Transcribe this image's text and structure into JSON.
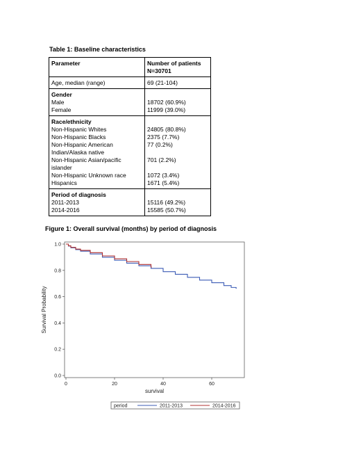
{
  "table": {
    "caption": "Table 1: Baseline characteristics",
    "header": {
      "parameter": "Parameter",
      "patients": [
        "Number of patients",
        "N=30701"
      ]
    },
    "age": {
      "label": "Age, median (range)",
      "value": "69 (21-104)"
    },
    "groups": [
      {
        "title": "Gender",
        "rows": [
          {
            "label": [
              "Male"
            ],
            "value": "18702 (60.9%)"
          },
          {
            "label": [
              "Female"
            ],
            "value": "11999 (39.0%)"
          }
        ]
      },
      {
        "title": "Race/ethnicity",
        "rows": [
          {
            "label": [
              "Non-Hispanic Whites"
            ],
            "value": "24805 (80.8%)"
          },
          {
            "label": [
              "Non-Hispanic Blacks"
            ],
            "value": "2375 (7.7%)"
          },
          {
            "label": [
              "Non-Hispanic American",
              "Indian/Alaska native"
            ],
            "value": "77 (0.2%)"
          },
          {
            "label": [
              "Non-Hispanic Asian/pacific",
              "islander"
            ],
            "value": "701 (2.2%)"
          },
          {
            "label": [
              "Non-Hispanic Unknown race"
            ],
            "value": "1072 (3.4%)"
          },
          {
            "label": [
              "Hispanics"
            ],
            "value": "1671 (5.4%)"
          }
        ]
      },
      {
        "title": "Period of diagnosis",
        "rows": [
          {
            "label": [
              "2011-2013"
            ],
            "value": "15116 (49.2%)"
          },
          {
            "label": [
              "2014-2016"
            ],
            "value": "15585 (50.7%)"
          }
        ]
      }
    ]
  },
  "figure": {
    "caption": "Figure 1: Overall survival (months) by period of diagnosis"
  },
  "chart_data": {
    "type": "line",
    "xlabel": "survival",
    "ylabel": "Survival Probability",
    "xlim": [
      0,
      70
    ],
    "ylim": [
      0.0,
      1.0
    ],
    "xticks": [
      "0",
      "20",
      "40",
      "60"
    ],
    "yticks": [
      "0.0",
      "0.2",
      "0.4",
      "0.6",
      "0.8",
      "1.0"
    ],
    "legend": {
      "title": "period",
      "placement": "bottom"
    },
    "grid": false,
    "series": [
      {
        "name": "2011-2013",
        "color": "#3b5bb5",
        "x": [
          0,
          1,
          2,
          4,
          6,
          10,
          15,
          20,
          25,
          30,
          35,
          40,
          45,
          50,
          55,
          60,
          65,
          68,
          70
        ],
        "y": [
          1.0,
          0.985,
          0.972,
          0.958,
          0.946,
          0.925,
          0.9,
          0.877,
          0.855,
          0.835,
          0.815,
          0.79,
          0.77,
          0.747,
          0.726,
          0.706,
          0.684,
          0.67,
          0.665
        ]
      },
      {
        "name": "2014-2016",
        "color": "#b03030",
        "x": [
          0,
          1,
          2,
          4,
          6,
          10,
          15,
          20,
          25,
          30,
          35
        ],
        "y": [
          1.0,
          0.987,
          0.975,
          0.962,
          0.952,
          0.935,
          0.91,
          0.888,
          0.867,
          0.845,
          0.825
        ]
      }
    ]
  }
}
